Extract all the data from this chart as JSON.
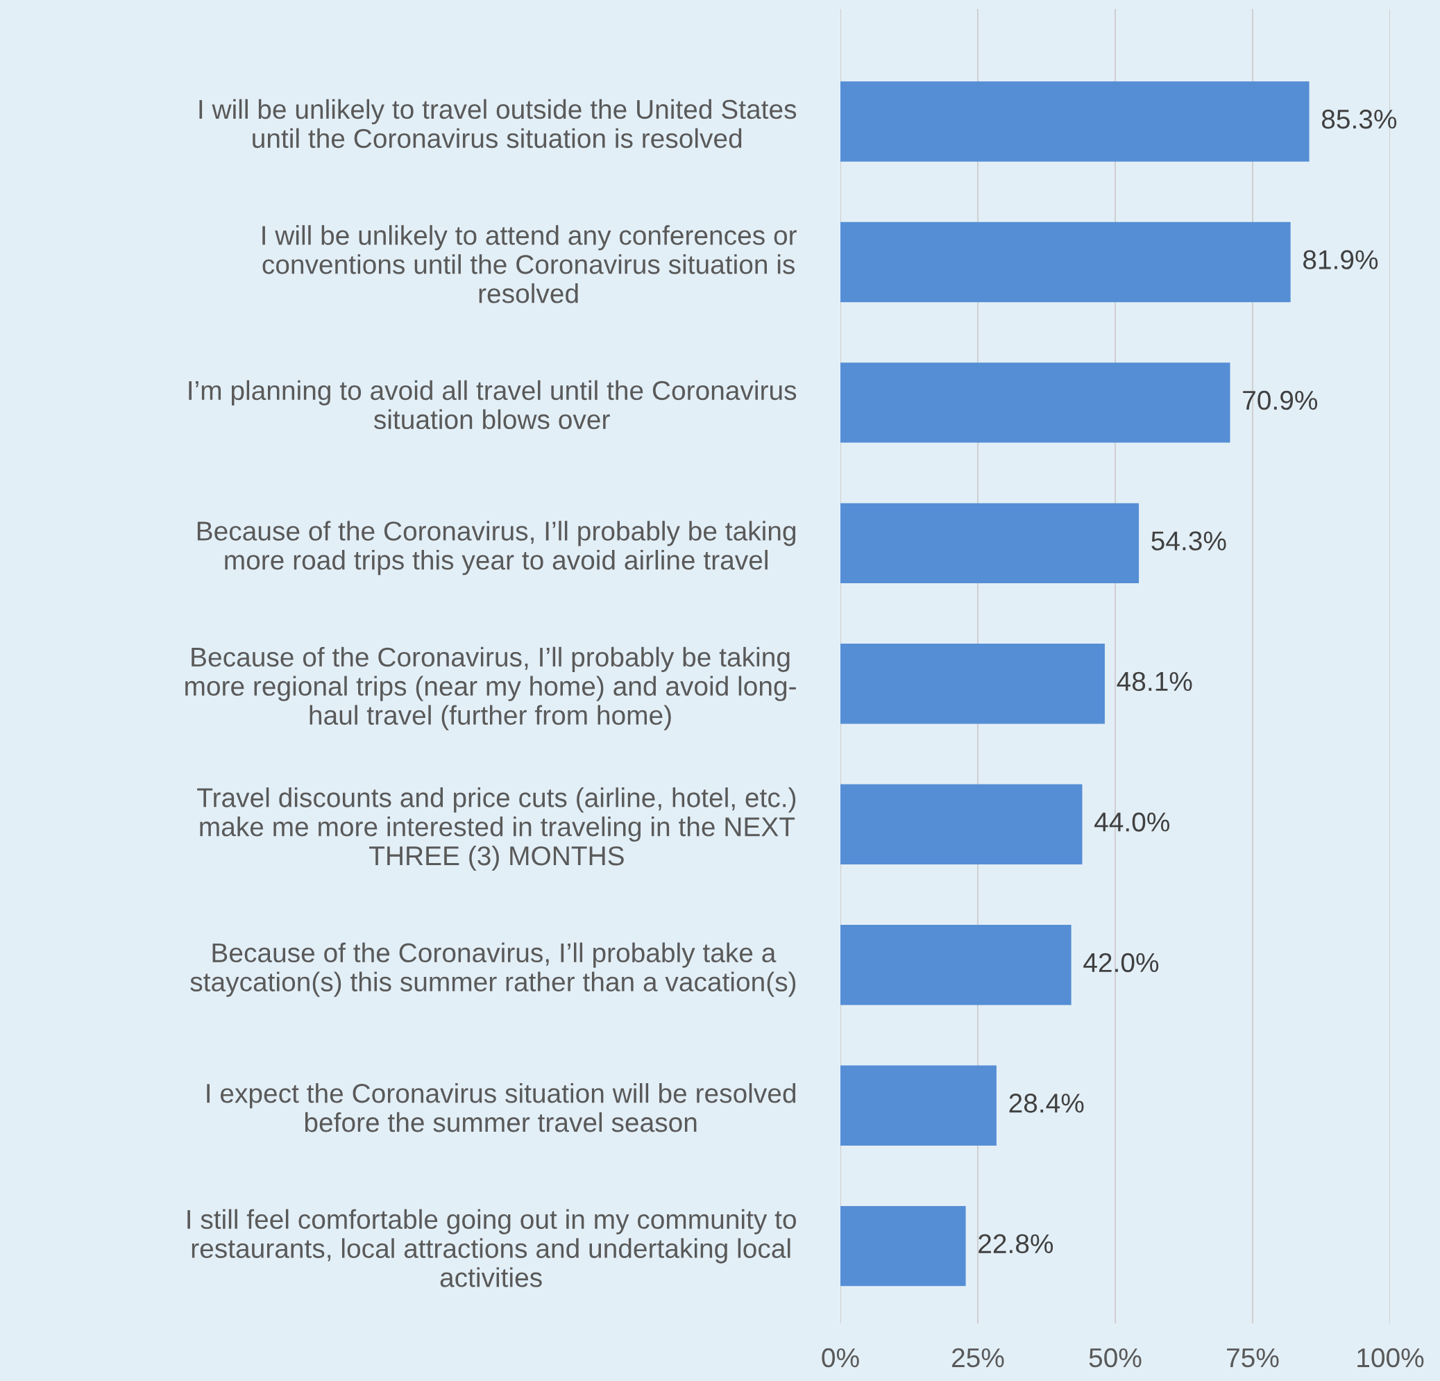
{
  "chart_data": {
    "type": "bar",
    "orientation": "horizontal",
    "categories": [
      "I will be unlikely to travel outside the United States\nuntil the Coronavirus situation is resolved",
      "I will be unlikely to attend any conferences or\nconventions until the Coronavirus situation is\nresolved",
      "I’m planning to avoid all travel until the Coronavirus\nsituation blows over",
      "Because of the Coronavirus, I’ll probably be taking\nmore road trips this year to avoid airline travel",
      "Because of the Coronavirus, I’ll probably be taking\nmore regional trips (near my home) and avoid long-\nhaul travel (further from home)",
      "Travel discounts and price cuts (airline, hotel, etc.)\nmake me more interested in traveling in the NEXT\nTHREE (3) MONTHS",
      "Because of the Coronavirus, I’ll probably take a\nstaycation(s) this summer rather than a vacation(s)",
      "I expect the Coronavirus situation will be resolved\nbefore the summer travel season",
      "I still feel comfortable going out in my community to\nrestaurants, local attractions and undertaking local\nactivities"
    ],
    "values": [
      85.3,
      81.9,
      70.9,
      54.3,
      48.1,
      44.0,
      42.0,
      28.4,
      22.8
    ],
    "value_labels": [
      "85.3%",
      "81.9%",
      "70.9%",
      "54.3%",
      "48.1%",
      "44.0%",
      "42.0%",
      "28.4%",
      "22.8%"
    ],
    "color": "#558ed5",
    "xlim": [
      0,
      100
    ],
    "xticks": [
      {
        "value": 0,
        "label": "0%"
      },
      {
        "value": 25,
        "label": "25%"
      },
      {
        "value": 50,
        "label": "50%"
      },
      {
        "value": 75,
        "label": "75%"
      },
      {
        "value": 100,
        "label": "100%"
      }
    ],
    "grid": "x"
  }
}
